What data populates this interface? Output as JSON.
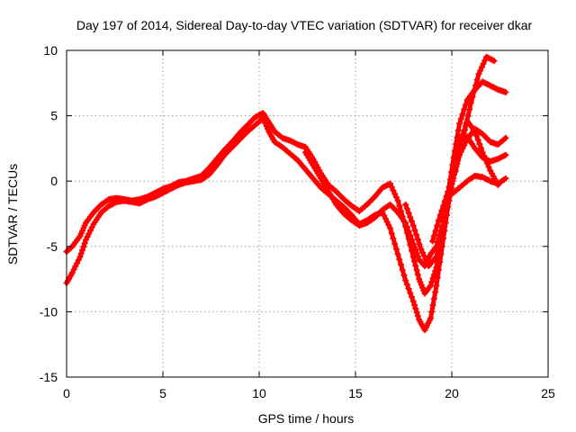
{
  "chart_data": {
    "type": "scatter",
    "title": "Day 197 of 2014, Sidereal Day-to-day VTEC variation (SDTVAR) for receiver dkar",
    "xlabel": "GPS time / hours",
    "ylabel": "SDTVAR / TECUs",
    "xlim": [
      0,
      25
    ],
    "ylim": [
      -15,
      10
    ],
    "xticks": [
      "0",
      "5",
      "10",
      "15",
      "20",
      "25"
    ],
    "yticks": [
      "-15",
      "-10",
      "-5",
      "0",
      "5",
      "10"
    ],
    "grid": true,
    "legend": "none",
    "marker": "plus",
    "color": "#ff0000",
    "series": [
      {
        "x": [
          0.0,
          0.3,
          0.7,
          1.0,
          1.4,
          1.8,
          2.2,
          2.6,
          3.0,
          3.4,
          3.8,
          4.2,
          4.6,
          5.0,
          5.4,
          5.8,
          6.2,
          6.6,
          7.0,
          7.4,
          7.8,
          8.2,
          8.6,
          9.0,
          9.4,
          9.8,
          10.2,
          10.5,
          10.8,
          11.2,
          11.6,
          12.0,
          12.4,
          12.8,
          13.2,
          13.6,
          14.0,
          14.4,
          14.8,
          15.2,
          15.6,
          16.0,
          16.4,
          16.8,
          17.2,
          17.6,
          18.0,
          18.3,
          18.6,
          18.9,
          19.2,
          19.5,
          19.8,
          20.1,
          20.4,
          20.8,
          21.2,
          21.6,
          22.0,
          22.4,
          22.8
        ],
        "y": [
          -7.8,
          -7.0,
          -5.8,
          -4.5,
          -3.3,
          -2.4,
          -1.9,
          -1.6,
          -1.5,
          -1.6,
          -1.7,
          -1.4,
          -1.2,
          -0.9,
          -0.6,
          -0.3,
          -0.1,
          0.0,
          0.1,
          0.5,
          1.2,
          2.0,
          2.6,
          3.2,
          3.8,
          4.3,
          4.8,
          3.8,
          3.0,
          2.6,
          2.1,
          1.6,
          0.9,
          0.2,
          -0.5,
          -1.0,
          -1.5,
          -2.0,
          -2.6,
          -3.3,
          -3.0,
          -2.6,
          -2.4,
          -3.6,
          -5.6,
          -7.6,
          -9.2,
          -10.6,
          -11.4,
          -10.5,
          -8.0,
          -5.0,
          -2.0,
          0.5,
          2.6,
          3.4,
          2.5,
          1.8,
          1.5,
          1.7,
          2.0
        ]
      },
      {
        "x": [
          0.0,
          0.3,
          0.7,
          1.0,
          1.4,
          1.8,
          2.2,
          2.6,
          3.0,
          3.4,
          3.8,
          4.2,
          4.6,
          5.0,
          5.4,
          5.8,
          6.2,
          6.6,
          7.0,
          7.4,
          7.8,
          8.2,
          8.6,
          9.0,
          9.4,
          9.8,
          10.2,
          10.5,
          10.8,
          11.2,
          11.6,
          12.0,
          12.4,
          12.8,
          13.2,
          13.6,
          14.0,
          14.4,
          14.8,
          15.2,
          15.6,
          16.0,
          16.4,
          16.8,
          17.2,
          17.6,
          18.0,
          18.3,
          18.6,
          18.9,
          19.2,
          19.5,
          19.8,
          20.1,
          20.4,
          20.8,
          21.2,
          21.6,
          22.0,
          22.4,
          22.8
        ],
        "y": [
          -5.4,
          -5.0,
          -4.2,
          -3.2,
          -2.4,
          -1.8,
          -1.4,
          -1.3,
          -1.4,
          -1.5,
          -1.4,
          -1.2,
          -0.9,
          -0.6,
          -0.4,
          -0.1,
          0.0,
          0.2,
          0.4,
          1.0,
          1.7,
          2.4,
          3.0,
          3.7,
          4.3,
          4.9,
          5.2,
          4.5,
          3.8,
          3.3,
          3.1,
          2.8,
          2.6,
          1.7,
          0.6,
          -0.3,
          -0.8,
          -1.4,
          -1.9,
          -2.3,
          -1.8,
          -1.2,
          -0.5,
          -0.2,
          -1.5,
          -3.5,
          -5.8,
          -7.5,
          -8.6,
          -8.0,
          -6.6,
          -4.0,
          -1.0,
          1.8,
          4.4,
          6.2,
          7.0,
          7.6,
          7.3,
          7.0,
          6.8
        ]
      },
      {
        "x": [
          12.4,
          12.8,
          13.2,
          13.6,
          14.0,
          14.4,
          14.8,
          15.2,
          15.6,
          16.0,
          16.4,
          16.8,
          17.2,
          17.6,
          18.0,
          18.3,
          18.6,
          18.9,
          19.2,
          19.5,
          19.8,
          20.1,
          20.4,
          20.8,
          21.2,
          21.6,
          22.0,
          22.4
        ],
        "y": [
          2.2,
          1.2,
          0.2,
          -0.8,
          -1.8,
          -2.5,
          -3.0,
          -3.4,
          -3.2,
          -2.8,
          -2.2,
          -1.8,
          -2.4,
          -3.2,
          -4.8,
          -6.0,
          -6.5,
          -5.6,
          -5.0,
          -3.5,
          -1.5,
          0.6,
          2.8,
          4.6,
          3.8,
          2.2,
          0.8,
          -0.3
        ]
      },
      {
        "x": [
          17.6,
          18.0,
          18.4,
          18.8,
          19.2,
          19.6,
          20.0,
          20.4,
          20.8,
          21.2,
          21.6,
          22.0,
          22.4,
          22.8
        ],
        "y": [
          -1.8,
          -3.4,
          -5.2,
          -6.5,
          -5.8,
          -3.0,
          -0.2,
          2.0,
          3.2,
          4.0,
          3.6,
          3.0,
          2.8,
          3.3
        ]
      },
      {
        "x": [
          19.0,
          19.4,
          19.8,
          20.2,
          20.6,
          21.0,
          21.4,
          21.8,
          22.2
        ],
        "y": [
          -4.6,
          -2.6,
          -0.8,
          0.8,
          3.4,
          6.0,
          8.2,
          9.5,
          9.2
        ]
      },
      {
        "x": [
          20.0,
          20.4,
          20.8,
          21.2,
          21.6,
          22.0,
          22.4,
          22.8
        ],
        "y": [
          -1.0,
          -0.5,
          0.0,
          0.4,
          0.3,
          0.0,
          -0.2,
          0.2
        ]
      }
    ]
  }
}
